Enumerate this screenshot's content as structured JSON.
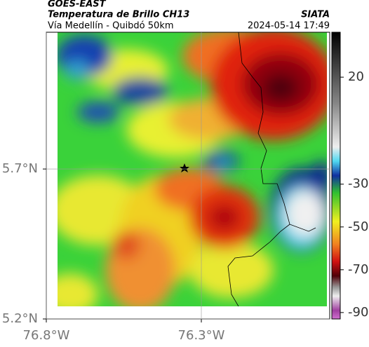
{
  "header": {
    "title": "GOES-EAST",
    "subtitle": "Temperatura de Brillo CH13",
    "source": "SIATA",
    "location": "Vía Medellín - Quibdó 50km",
    "timestamp": "2024-05-14 17:49"
  },
  "map": {
    "xlim": [
      -76.8,
      -75.886
    ],
    "ylim": [
      5.2,
      6.156
    ],
    "xticks": [
      {
        "value": -76.8,
        "label": "76.8°W"
      },
      {
        "value": -76.3,
        "label": "76.3°W"
      }
    ],
    "yticks": [
      {
        "value": 5.2,
        "label": "5.2°N"
      },
      {
        "value": 5.7,
        "label": "5.7°N"
      }
    ]
  },
  "colorbar": {
    "lim": [
      -93,
      41
    ],
    "ticks": [
      20,
      -30,
      -50,
      -70,
      -90
    ]
  }
}
